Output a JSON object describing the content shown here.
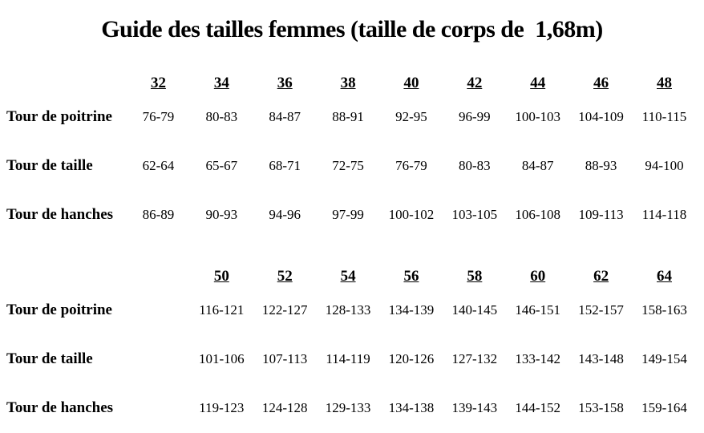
{
  "title": "Guide des tailles femmes (taille de corps de  1,68m)",
  "table": {
    "sections": [
      {
        "sizes": [
          "32",
          "34",
          "36",
          "38",
          "40",
          "42",
          "44",
          "46",
          "48"
        ],
        "rows": [
          {
            "label": "Tour de poitrine",
            "values": [
              "76-79",
              "80-83",
              "84-87",
              "88-91",
              "92-95",
              "96-99",
              "100-103",
              "104-109",
              "110-115"
            ]
          },
          {
            "label": "Tour de taille",
            "values": [
              "62-64",
              "65-67",
              "68-71",
              "72-75",
              "76-79",
              "80-83",
              "84-87",
              "88-93",
              "94-100"
            ]
          },
          {
            "label": "Tour de hanches",
            "values": [
              "86-89",
              "90-93",
              "94-96",
              "97-99",
              "100-102",
              "103-105",
              "106-108",
              "109-113",
              "114-118"
            ]
          }
        ]
      },
      {
        "sizes": [
          "50",
          "52",
          "54",
          "56",
          "58",
          "60",
          "62",
          "64"
        ],
        "rows": [
          {
            "label": "Tour de poitrine",
            "values": [
              "116-121",
              "122-127",
              "128-133",
              "134-139",
              "140-145",
              "146-151",
              "152-157",
              "158-163"
            ]
          },
          {
            "label": "Tour de taille",
            "values": [
              "101-106",
              "107-113",
              "114-119",
              "120-126",
              "127-132",
              "133-142",
              "143-148",
              "149-154"
            ]
          },
          {
            "label": "Tour de hanches",
            "values": [
              "119-123",
              "124-128",
              "129-133",
              "134-138",
              "139-143",
              "144-152",
              "153-158",
              "159-164"
            ]
          }
        ]
      }
    ]
  }
}
